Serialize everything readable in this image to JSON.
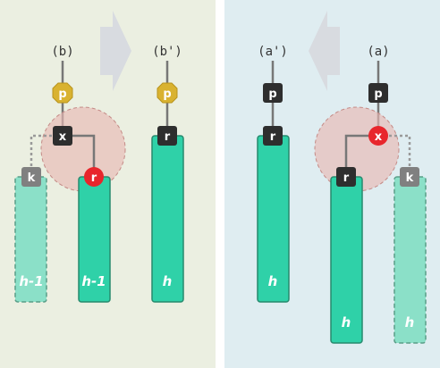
{
  "colors": {
    "left_panel_bg": "#ebefe1",
    "right_panel_bg": "#dfedf1",
    "arrow_fill": "#d8dbe0",
    "subtree_solid": "#2fd1a8",
    "subtree_light": "#8be0c8",
    "node_dark": "#2e2e2e",
    "node_gray": "#808080",
    "node_red": "#e8262c",
    "node_gold": "#d9b230",
    "rotation_circle": "#e8b9b4"
  },
  "left_panel": {
    "before": {
      "caption": "(b)",
      "nodes": {
        "p": "p",
        "x": "x",
        "r": "r",
        "k": "k"
      },
      "subtrees": {
        "k": "h-1",
        "r": "h-1"
      }
    },
    "after": {
      "caption": "(b')",
      "nodes": {
        "p": "p",
        "r": "r"
      },
      "subtrees": {
        "r": "h"
      }
    },
    "arrow_direction": "right"
  },
  "right_panel": {
    "after": {
      "caption": "(a')",
      "nodes": {
        "p": "p",
        "r": "r"
      },
      "subtrees": {
        "r": "h"
      }
    },
    "before": {
      "caption": "(a)",
      "nodes": {
        "p": "p",
        "x": "x",
        "r": "r",
        "k": "k"
      },
      "subtrees": {
        "r": "h",
        "k": "h"
      }
    },
    "arrow_direction": "left"
  }
}
